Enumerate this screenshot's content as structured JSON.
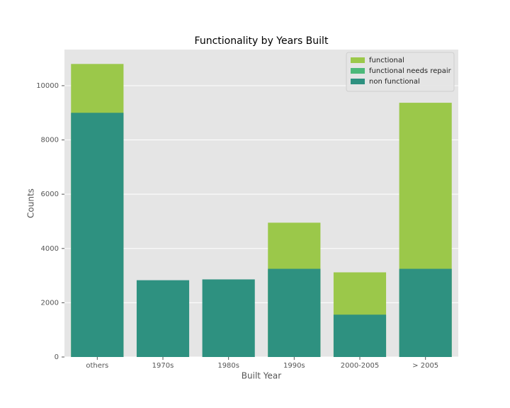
{
  "chart_data": {
    "type": "bar",
    "title": "Functionality by Years Built",
    "x_label": "Built Year",
    "y_label": "Counts",
    "categories": [
      "others",
      "1970s",
      "1980s",
      "1990s",
      "2000-2005",
      "> 2005"
    ],
    "series": [
      {
        "name": "functional",
        "color": "#9bc84a",
        "values": [
          10800,
          null,
          null,
          4950,
          3120,
          9370
        ]
      },
      {
        "name": "functional needs repair",
        "color": "#4cb97a",
        "values": [
          null,
          null,
          null,
          null,
          null,
          null
        ]
      },
      {
        "name": "non functional",
        "color": "#2e9180",
        "values": [
          9000,
          2830,
          2860,
          3250,
          1560,
          3250
        ]
      }
    ],
    "ylim": [
      0,
      11330
    ],
    "yticks": [
      0,
      2000,
      4000,
      6000,
      8000,
      10000
    ],
    "grid": true,
    "legend": "upper right"
  }
}
